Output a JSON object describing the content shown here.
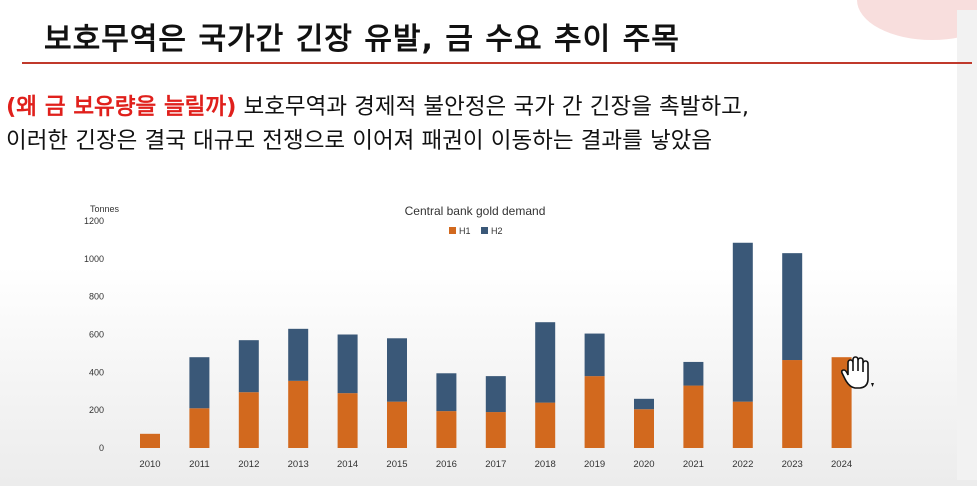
{
  "slide": {
    "title": "보호무역은 국가간 긴장 유발, 금 수요 추이 주목",
    "lines": [
      {
        "highlight": "(왜 금 보유량을 늘릴까)",
        "text": " 보호무역과 경제적 불안정은 국가 간 긴장을 촉발하고,"
      },
      {
        "highlight": "",
        "text": "이러한 긴장은 결국 대규모 전쟁으로 이어져 패권이 이동하는 결과를 낳았음"
      }
    ]
  },
  "colors": {
    "h1": "#d2691e",
    "h2": "#3a5878",
    "title_rule": "#c0392b",
    "highlight": "#e0201c"
  },
  "icons": {
    "cursor": "hand-cursor-icon"
  },
  "chart_data": {
    "type": "bar",
    "stacked": true,
    "title": "Central bank gold demand",
    "ylabel": "Tonnes",
    "xlabel": "",
    "ylim": [
      0,
      1200
    ],
    "yticks": [
      0,
      200,
      400,
      600,
      800,
      1000,
      1200
    ],
    "legend_position": "top-center",
    "grid": false,
    "categories": [
      "2010",
      "2011",
      "2012",
      "2013",
      "2014",
      "2015",
      "2016",
      "2017",
      "2018",
      "2019",
      "2020",
      "2021",
      "2022",
      "2023",
      "2024"
    ],
    "series": [
      {
        "name": "H1",
        "values": [
          75,
          210,
          295,
          355,
          290,
          245,
          195,
          190,
          240,
          380,
          205,
          330,
          245,
          465,
          480
        ]
      },
      {
        "name": "H2",
        "values": [
          0,
          270,
          275,
          275,
          310,
          335,
          200,
          190,
          425,
          225,
          55,
          125,
          840,
          565,
          0
        ]
      }
    ]
  }
}
